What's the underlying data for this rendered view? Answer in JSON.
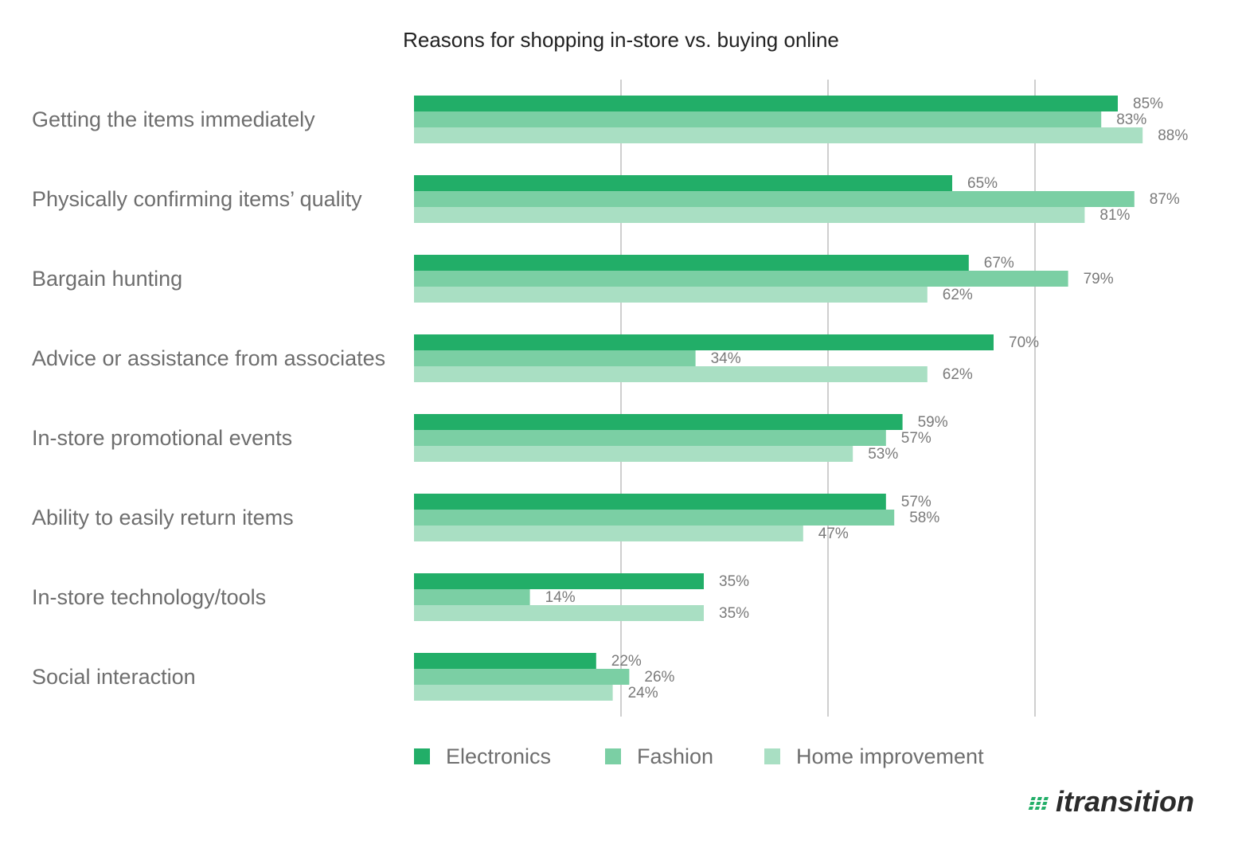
{
  "chart_data": {
    "type": "bar",
    "orientation": "horizontal",
    "title": "Reasons for shopping in-store vs. buying online",
    "categories": [
      "Getting the items immediately",
      "Physically confirming items’ quality",
      "Bargain hunting",
      "Advice or assistance from associates",
      "In-store promotional events",
      "Ability to easily return items",
      "In-store technology/tools",
      "Social interaction"
    ],
    "series": [
      {
        "name": "Electronics",
        "color": "#22ae68",
        "values": [
          85,
          65,
          67,
          70,
          59,
          57,
          35,
          22
        ]
      },
      {
        "name": "Fashion",
        "color": "#7bcfa4",
        "values": [
          83,
          87,
          79,
          34,
          57,
          58,
          14,
          26
        ]
      },
      {
        "name": "Home improvement",
        "color": "#a9dfc3",
        "values": [
          88,
          81,
          62,
          62,
          53,
          47,
          35,
          24
        ]
      }
    ],
    "value_suffix": "%",
    "xlim": [
      0,
      100
    ],
    "grid": true,
    "legend_position": "bottom"
  },
  "brand": {
    "logo_text": "itransition",
    "logo_color": "#22ae68"
  }
}
